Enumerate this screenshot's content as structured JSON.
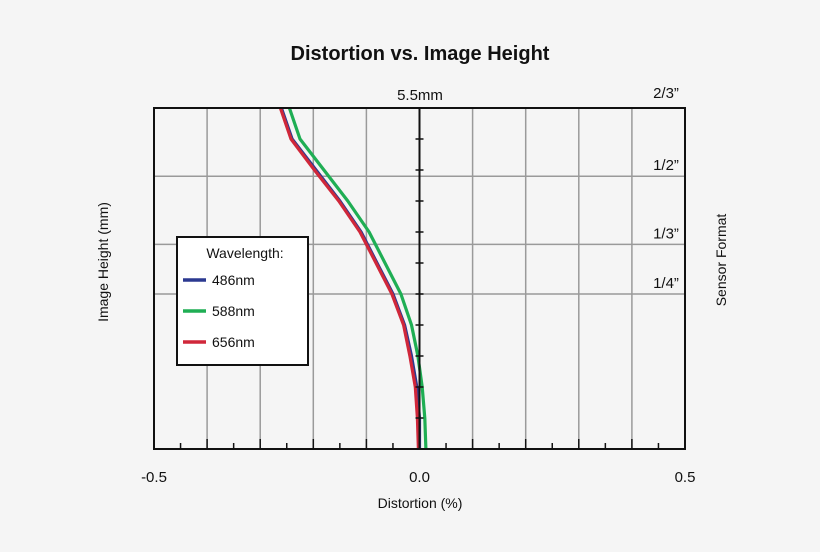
{
  "chart_data": {
    "type": "line",
    "title": "Distortion vs. Image Height",
    "xlabel": "Distortion (%)",
    "ylabel": "Image Height (mm)",
    "y2label": "Sensor Format",
    "xlim": [
      -0.5,
      0.5
    ],
    "ylim": [
      0,
      5.5
    ],
    "x_ticks": [
      -0.5,
      0.0,
      0.5
    ],
    "x_tick_labels": [
      "-0.5",
      "0.0",
      "0.5"
    ],
    "top_label": "5.5mm",
    "grid": true,
    "sensor_formats": [
      {
        "label": "2/3”",
        "y": 5.5
      },
      {
        "label": "1/2”",
        "y": 4.4
      },
      {
        "label": "1/3”",
        "y": 3.3
      },
      {
        "label": "1/4”",
        "y": 2.5
      }
    ],
    "legend": {
      "title": "Wavelength:",
      "position": "middle-left"
    },
    "series": [
      {
        "name": "486nm",
        "color": "#2b3990",
        "x": [
          0.0,
          0.0,
          -0.005,
          -0.015,
          -0.028,
          -0.05,
          -0.08,
          -0.11,
          -0.15,
          -0.195,
          -0.24,
          -0.26
        ],
        "y": [
          0.0,
          0.5,
          1.0,
          1.5,
          2.0,
          2.5,
          3.0,
          3.5,
          4.0,
          4.5,
          5.0,
          5.5
        ]
      },
      {
        "name": "588nm",
        "color": "#1fae54",
        "x": [
          0.012,
          0.01,
          0.005,
          -0.003,
          -0.015,
          -0.035,
          -0.065,
          -0.095,
          -0.135,
          -0.18,
          -0.225,
          -0.245
        ],
        "y": [
          0.0,
          0.5,
          1.0,
          1.5,
          2.0,
          2.5,
          3.0,
          3.5,
          4.0,
          4.5,
          5.0,
          5.5
        ]
      },
      {
        "name": "656nm",
        "color": "#d0273a",
        "x": [
          -0.002,
          -0.004,
          -0.008,
          -0.018,
          -0.03,
          -0.052,
          -0.082,
          -0.112,
          -0.152,
          -0.198,
          -0.242,
          -0.262
        ],
        "y": [
          0.0,
          0.5,
          1.0,
          1.5,
          2.0,
          2.5,
          3.0,
          3.5,
          4.0,
          4.5,
          5.0,
          5.5
        ]
      }
    ]
  }
}
